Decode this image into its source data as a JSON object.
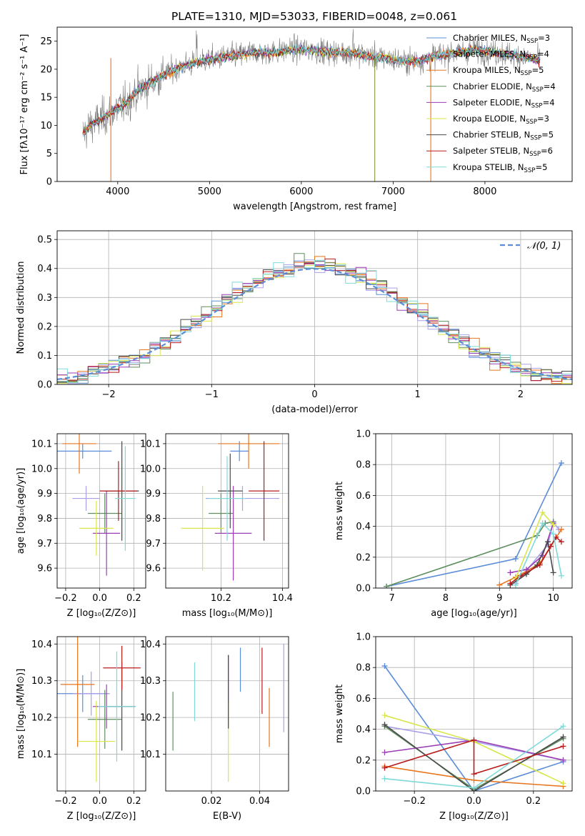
{
  "figure": {
    "title": "PLATE=1310, MJD=53033, FIBERID=0048, z=0.061"
  },
  "model_colors": [
    "#5b8dd9",
    "#a9a0e8",
    "#e8761f",
    "#5f8f5f",
    "#9a3fb5",
    "#d8e64a",
    "#4a4a4a",
    "#b81b1b",
    "#7fd9d9"
  ],
  "chart_data": [
    {
      "id": "spectrum",
      "type": "line",
      "xlabel": "wavelength [Angstrom, rest frame]",
      "ylabel": "Flux [fλ10⁻¹⁷ erg cm⁻² s⁻¹ A⁻¹]",
      "xlim": [
        3340,
        8950
      ],
      "ylim": [
        0,
        27.5
      ],
      "xticks": [
        "4000",
        "5000",
        "6000",
        "7000",
        "8000"
      ],
      "yticks": [
        "0",
        "5",
        "10",
        "15",
        "20",
        "25"
      ],
      "grid": false,
      "legend_location": "top-right",
      "spectrum_shape": {
        "x": [
          3600,
          3700,
          3800,
          3900,
          4000,
          4100,
          4200,
          4300,
          4400,
          4500,
          4700,
          4900,
          5100,
          5300,
          5500,
          5700,
          5900,
          6100,
          6300,
          6500,
          6700,
          6900,
          7100,
          7300,
          7500,
          7700,
          7900,
          8100,
          8300,
          8500,
          8600
        ],
        "y": [
          8,
          10,
          11,
          12,
          13,
          14,
          16,
          17,
          18,
          19,
          20.5,
          21.5,
          22,
          22.5,
          23,
          23,
          23.5,
          23.5,
          23,
          23,
          22.5,
          22,
          21.5,
          21.5,
          22.5,
          23,
          23.5,
          23,
          22.5,
          22,
          21.5
        ]
      },
      "series": [
        {
          "name": "Chabrier MILES, N_SSP=3"
        },
        {
          "name": "Salpeter MILES, N_SSP=4"
        },
        {
          "name": "Kroupa MILES, N_SSP=5"
        },
        {
          "name": "Chabrier ELODIE, N_SSP=4"
        },
        {
          "name": "Salpeter ELODIE, N_SSP=4"
        },
        {
          "name": "Kroupa ELODIE, N_SSP=3"
        },
        {
          "name": "Chabrier STELIB, N_SSP=5"
        },
        {
          "name": "Salpeter STELIB, N_SSP=6"
        },
        {
          "name": "Kroupa STELIB, N_SSP=5"
        }
      ]
    },
    {
      "id": "residuals",
      "type": "line",
      "xlabel": "(data-model)/error",
      "ylabel": "Normed distribution",
      "xlim": [
        -2.5,
        2.5
      ],
      "ylim": [
        0,
        0.53
      ],
      "xticks": [
        "−2",
        "−1",
        "0",
        "1",
        "2"
      ],
      "yticks": [
        "0.0",
        "0.1",
        "0.2",
        "0.3",
        "0.4",
        "0.5"
      ],
      "grid": true,
      "legend": "𝒩(0, 1)",
      "legend_location": "top-right",
      "bins": [
        -2.45,
        -2.35,
        -2.25,
        -2.15,
        -2.05,
        -1.95,
        -1.85,
        -1.75,
        -1.65,
        -1.55,
        -1.45,
        -1.35,
        -1.25,
        -1.15,
        -1.05,
        -0.95,
        -0.85,
        -0.75,
        -0.65,
        -0.55,
        -0.45,
        -0.35,
        -0.25,
        -0.15,
        -0.05,
        0.05,
        0.15,
        0.25,
        0.35,
        0.45,
        0.55,
        0.65,
        0.75,
        0.85,
        0.95,
        1.05,
        1.15,
        1.25,
        1.35,
        1.45,
        1.55,
        1.65,
        1.75,
        1.85,
        1.95,
        2.05,
        2.15,
        2.25,
        2.35,
        2.45
      ],
      "gaussian": {
        "mean": 0,
        "sigma": 1
      }
    },
    {
      "id": "z-vs-age",
      "type": "scatter",
      "xlabel": "Z [log₁₀(Z/Z⊙)]",
      "ylabel": "age  [log₁₀(age/yr)]",
      "xlim": [
        -0.25,
        0.27
      ],
      "ylim": [
        9.52,
        10.14
      ],
      "xticks": [
        "−0.2",
        "0.0",
        "0.2"
      ],
      "yticks": [
        "9.6",
        "9.7",
        "9.8",
        "9.9",
        "10.0",
        "10.1"
      ],
      "grid": true,
      "points": [
        {
          "x": -0.1,
          "xerr": 0.17,
          "y": 10.07,
          "yerr": 0.03
        },
        {
          "x": -0.08,
          "xerr": 0.08,
          "y": 9.88,
          "yerr": 0.05
        },
        {
          "x": -0.12,
          "xerr": 0.1,
          "y": 10.1,
          "yerr": 0.12
        },
        {
          "x": 0.03,
          "xerr": 0.1,
          "y": 9.82,
          "yerr": 0.08
        },
        {
          "x": 0.04,
          "xerr": 0.08,
          "y": 9.74,
          "yerr": 0.17
        },
        {
          "x": -0.02,
          "xerr": 0.1,
          "y": 9.76,
          "yerr": 0.11
        },
        {
          "x": 0.13,
          "xerr": 0.1,
          "y": 9.91,
          "yerr": 0.2
        },
        {
          "x": 0.11,
          "xerr": 0.11,
          "y": 9.91,
          "yerr": 0.12
        },
        {
          "x": 0.15,
          "xerr": 0.06,
          "y": 9.88,
          "yerr": 0.21
        }
      ]
    },
    {
      "id": "mass-vs-age",
      "type": "scatter",
      "xlabel": "mass [log₁₀(M/M⊙)]",
      "ylabel": "",
      "xlim": [
        10.02,
        10.42
      ],
      "ylim": [
        9.52,
        10.14
      ],
      "xticks": [
        "10.2",
        "10.4"
      ],
      "yticks": [
        "9.6",
        "9.7",
        "9.8",
        "9.9",
        "10.0",
        "10.1"
      ],
      "grid": true,
      "points": [
        {
          "x": 10.26,
          "xerr": 0.03,
          "y": 10.07,
          "yerr": 0.04
        },
        {
          "x": 10.27,
          "xerr": 0.12,
          "y": 9.88,
          "yerr": 0.05
        },
        {
          "x": 10.29,
          "xerr": 0.1,
          "y": 10.1,
          "yerr": 0.1
        },
        {
          "x": 10.2,
          "xerr": 0.04,
          "y": 9.82,
          "yerr": 0.08
        },
        {
          "x": 10.24,
          "xerr": 0.06,
          "y": 9.74,
          "yerr": 0.19
        },
        {
          "x": 10.14,
          "xerr": 0.07,
          "y": 9.76,
          "yerr": 0.17
        },
        {
          "x": 10.23,
          "xerr": 0.04,
          "y": 9.91,
          "yerr": 0.15
        },
        {
          "x": 10.34,
          "xerr": 0.05,
          "y": 9.91,
          "yerr": 0.2
        },
        {
          "x": 10.22,
          "xerr": 0.06,
          "y": 9.88,
          "yerr": 0.17
        }
      ]
    },
    {
      "id": "age-vs-massweight",
      "type": "line",
      "xlabel": "age  [log₁₀(age/yr)]",
      "ylabel": "mass weight",
      "xlim": [
        6.7,
        10.35
      ],
      "ylim": [
        0,
        1
      ],
      "xticks": [
        "7",
        "8",
        "9",
        "10"
      ],
      "yticks": [
        "0.0",
        "0.2",
        "0.4",
        "0.6",
        "0.8",
        "1.0"
      ],
      "grid": true,
      "series": [
        {
          "name": "Chabrier MILES",
          "x": [
            6.9,
            9.3,
            10.15
          ],
          "y": [
            0.01,
            0.19,
            0.81
          ]
        },
        {
          "name": "Salpeter MILES",
          "x": [
            9.3,
            9.9,
            10.0,
            10.1
          ],
          "y": [
            0.03,
            0.28,
            0.43,
            0.38
          ]
        },
        {
          "name": "Kroupa MILES",
          "x": [
            9.0,
            9.3,
            9.75,
            10.15
          ],
          "y": [
            0.02,
            0.07,
            0.16,
            0.38
          ]
        },
        {
          "name": "Chabrier ELODIE",
          "x": [
            6.9,
            9.7,
            9.85,
            10.0
          ],
          "y": [
            0.01,
            0.34,
            0.42,
            0.43
          ]
        },
        {
          "name": "Salpeter ELODIE",
          "x": [
            9.2,
            9.5,
            9.8,
            10.0
          ],
          "y": [
            0.1,
            0.12,
            0.21,
            0.42
          ]
        },
        {
          "name": "Kroupa ELODIE",
          "x": [
            9.3,
            9.8,
            10.0
          ],
          "y": [
            0.06,
            0.49,
            0.41
          ]
        },
        {
          "name": "Chabrier STELIB",
          "x": [
            9.2,
            9.5,
            9.7,
            9.9,
            10.0
          ],
          "y": [
            0.02,
            0.09,
            0.15,
            0.3,
            0.1
          ]
        },
        {
          "name": "Salpeter STELIB",
          "x": [
            9.2,
            9.4,
            9.75,
            9.95,
            10.05,
            10.15
          ],
          "y": [
            0.03,
            0.08,
            0.15,
            0.27,
            0.33,
            0.3
          ]
        },
        {
          "name": "Kroupa STELIB",
          "x": [
            9.3,
            9.8,
            10.0,
            10.15
          ],
          "y": [
            0.02,
            0.42,
            0.35,
            0.08
          ]
        }
      ]
    },
    {
      "id": "z-vs-mass",
      "type": "scatter",
      "xlabel": "Z [log₁₀(Z/Z⊙)]",
      "ylabel": "mass [log₁₀(M/M⊙)]",
      "xlim": [
        -0.25,
        0.27
      ],
      "ylim": [
        10.0,
        10.42
      ],
      "xticks": [
        "−0.2",
        "0.0",
        "0.2"
      ],
      "yticks": [
        "10.1",
        "10.2",
        "10.3",
        "10.4"
      ],
      "grid": true,
      "points": [
        {
          "x": -0.1,
          "xerr": 0.15,
          "y": 10.265,
          "yerr": 0.05
        },
        {
          "x": -0.05,
          "xerr": 0.11,
          "y": 10.265,
          "yerr": 0.06
        },
        {
          "x": -0.13,
          "xerr": 0.1,
          "y": 10.29,
          "yerr": 0.17
        },
        {
          "x": 0.03,
          "xerr": 0.1,
          "y": 10.195,
          "yerr": 0.08
        },
        {
          "x": 0.04,
          "xerr": 0.08,
          "y": 10.23,
          "yerr": 0.06
        },
        {
          "x": -0.02,
          "xerr": 0.11,
          "y": 10.135,
          "yerr": 0.11
        },
        {
          "x": 0.13,
          "xerr": 0.08,
          "y": 10.23,
          "yerr": 0.12
        },
        {
          "x": 0.13,
          "xerr": 0.11,
          "y": 10.335,
          "yerr": 0.06
        },
        {
          "x": 0.1,
          "xerr": 0.11,
          "y": 10.23,
          "yerr": 0.15
        }
      ]
    },
    {
      "id": "ebv-vs-mass",
      "type": "scatter",
      "xlabel": "E(B-V)",
      "ylabel": "",
      "xlim": [
        0.001,
        0.052
      ],
      "ylim": [
        10.0,
        10.42
      ],
      "xticks": [
        "0.02",
        "0.04"
      ],
      "yticks": [
        "10.1",
        "10.2",
        "10.3",
        "10.4"
      ],
      "grid": true,
      "points": [
        {
          "x": 0.032,
          "yerr": 0.06,
          "y": 10.33
        },
        {
          "x": 0.05,
          "yerr": 0.12,
          "y": 10.28
        },
        {
          "x": 0.044,
          "yerr": 0.08,
          "y": 10.2
        },
        {
          "x": 0.004,
          "yerr": 0.08,
          "y": 10.19
        },
        {
          "x": 0.027,
          "yerr": 0.1,
          "y": 10.27
        },
        {
          "x": 0.027,
          "yerr": 0.11,
          "y": 10.135
        },
        {
          "x": 0.027,
          "yerr": 0.1,
          "y": 10.27
        },
        {
          "x": 0.041,
          "yerr": 0.09,
          "y": 10.3
        },
        {
          "x": 0.013,
          "yerr": 0.08,
          "y": 10.27
        }
      ]
    },
    {
      "id": "z-vs-massweight",
      "type": "line",
      "xlabel": "Z [log₁₀(Z/Z⊙)]",
      "ylabel": "mass weight",
      "xlim": [
        -0.33,
        0.33
      ],
      "ylim": [
        0,
        1
      ],
      "xticks": [
        "−0.2",
        "0.0",
        "0.2"
      ],
      "yticks": [
        "0.0",
        "0.2",
        "0.4",
        "0.6",
        "0.8",
        "1.0"
      ],
      "grid": true,
      "series": [
        {
          "name": "Chabrier MILES",
          "x": [
            -0.3,
            0.0,
            0.3
          ],
          "y": [
            0.81,
            0.0,
            0.19
          ]
        },
        {
          "name": "Salpeter MILES",
          "x": [
            -0.3,
            0.0,
            0.3
          ],
          "y": [
            0.42,
            0.32,
            0.2
          ]
        },
        {
          "name": "Kroupa MILES",
          "x": [
            -0.3,
            0.0,
            0.3
          ],
          "y": [
            0.16,
            0.07,
            0.03
          ]
        },
        {
          "name": "Chabrier ELODIE",
          "x": [
            -0.3,
            0.0,
            0.3
          ],
          "y": [
            0.42,
            0.01,
            0.34
          ]
        },
        {
          "name": "Salpeter ELODIE",
          "x": [
            -0.3,
            0.0,
            0.3
          ],
          "y": [
            0.25,
            0.33,
            0.2
          ]
        },
        {
          "name": "Kroupa ELODIE",
          "x": [
            -0.3,
            0.0,
            0.3
          ],
          "y": [
            0.49,
            0.32,
            0.05
          ]
        },
        {
          "name": "Chabrier STELIB",
          "x": [
            -0.3,
            0.0,
            0.3
          ],
          "y": [
            0.43,
            0.0,
            0.35
          ]
        },
        {
          "name": "Salpeter STELIB",
          "x": [
            -0.3,
            0.0,
            0.0,
            0.3
          ],
          "y": [
            0.15,
            0.33,
            0.11,
            0.29
          ]
        },
        {
          "name": "Kroupa STELIB",
          "x": [
            -0.3,
            0.0,
            0.3
          ],
          "y": [
            0.08,
            0.02,
            0.42
          ]
        }
      ]
    }
  ]
}
